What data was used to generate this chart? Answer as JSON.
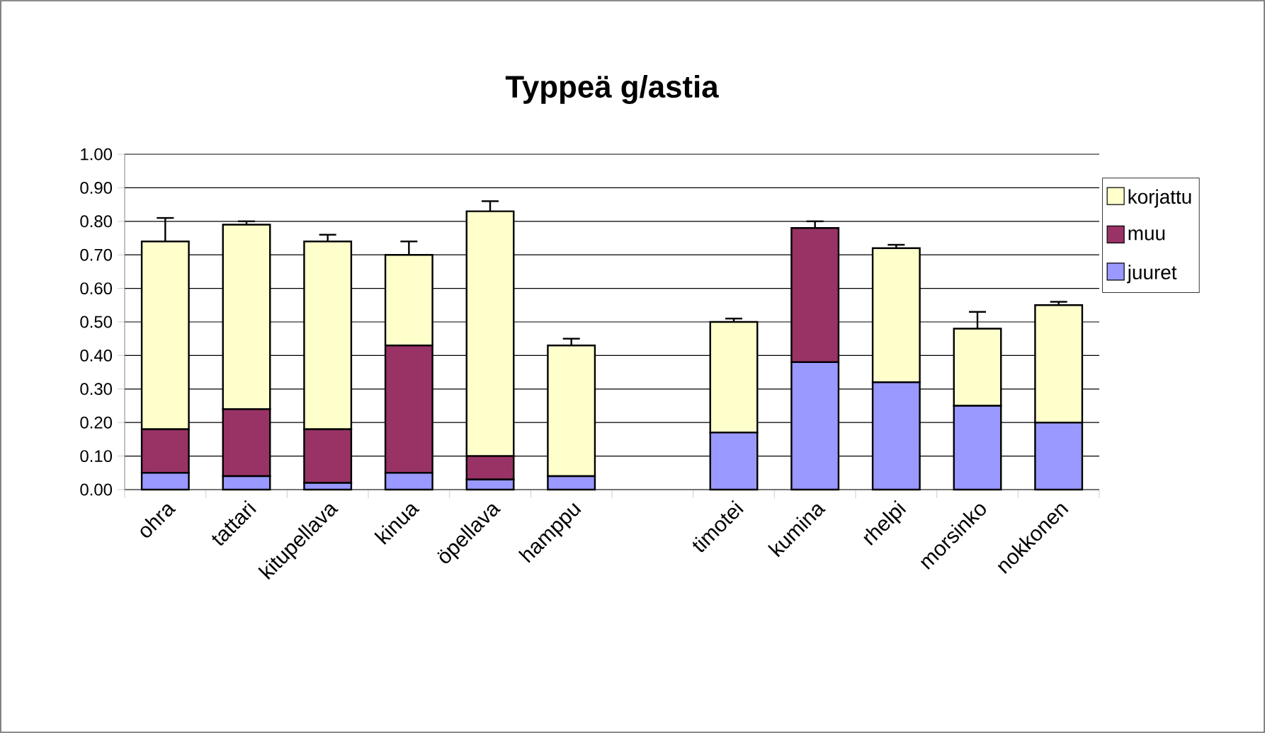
{
  "chart_data": {
    "type": "bar",
    "title": "Typpeä g/astia",
    "stacked": true,
    "grid": "y",
    "legend": "right",
    "categories": [
      "ohra",
      "tattari",
      "kitupellava",
      "kinua",
      "öpellava",
      "hamppu",
      null,
      "timotei",
      "kumina",
      "rhelpi",
      "morsinko",
      "nokkonen"
    ],
    "ylim": [
      0,
      1
    ],
    "yticks": [
      {
        "value": 0,
        "label": "0.00"
      },
      {
        "value": 0.1,
        "label": "0.10"
      },
      {
        "value": 0.2,
        "label": "0.20"
      },
      {
        "value": 0.3,
        "label": "0.30"
      },
      {
        "value": 0.4,
        "label": "0.40"
      },
      {
        "value": 0.5,
        "label": "0.50"
      },
      {
        "value": 0.6,
        "label": "0.60"
      },
      {
        "value": 0.7,
        "label": "0.70"
      },
      {
        "value": 0.8,
        "label": "0.80"
      },
      {
        "value": 0.9,
        "label": "0.90"
      },
      {
        "value": 1,
        "label": "1.00"
      }
    ],
    "series": [
      {
        "name": "juuret",
        "color": "#9999ff",
        "values": [
          0.05,
          0.04,
          0.02,
          0.05,
          0.03,
          0.04,
          0,
          0.17,
          0.38,
          0.32,
          0.25,
          0.2
        ]
      },
      {
        "name": "muu",
        "color": "#993366",
        "values": [
          0.13,
          0.2,
          0.16,
          0.38,
          0.07,
          0,
          0,
          0,
          0.4,
          0,
          0,
          0
        ],
        "errors": [
          null,
          null,
          null,
          null,
          null,
          null,
          null,
          null,
          [
            0.78,
            0.8
          ],
          null,
          null,
          null
        ]
      },
      {
        "name": "korjattu",
        "color": "#ffffcc",
        "values": [
          0.56,
          0.55,
          0.56,
          0.27,
          0.73,
          0.39,
          0,
          0.33,
          0,
          0.4,
          0.23,
          0.35
        ],
        "errors": [
          [
            0.74,
            0.81
          ],
          [
            0.79,
            0.8
          ],
          [
            0.74,
            0.76
          ],
          [
            0.7,
            0.74
          ],
          [
            0.83,
            0.86
          ],
          [
            0.43,
            0.45
          ],
          null,
          [
            0.5,
            0.51
          ],
          null,
          [
            0.72,
            0.73
          ],
          [
            0.48,
            0.53
          ],
          [
            0.55,
            0.56
          ]
        ]
      }
    ]
  }
}
